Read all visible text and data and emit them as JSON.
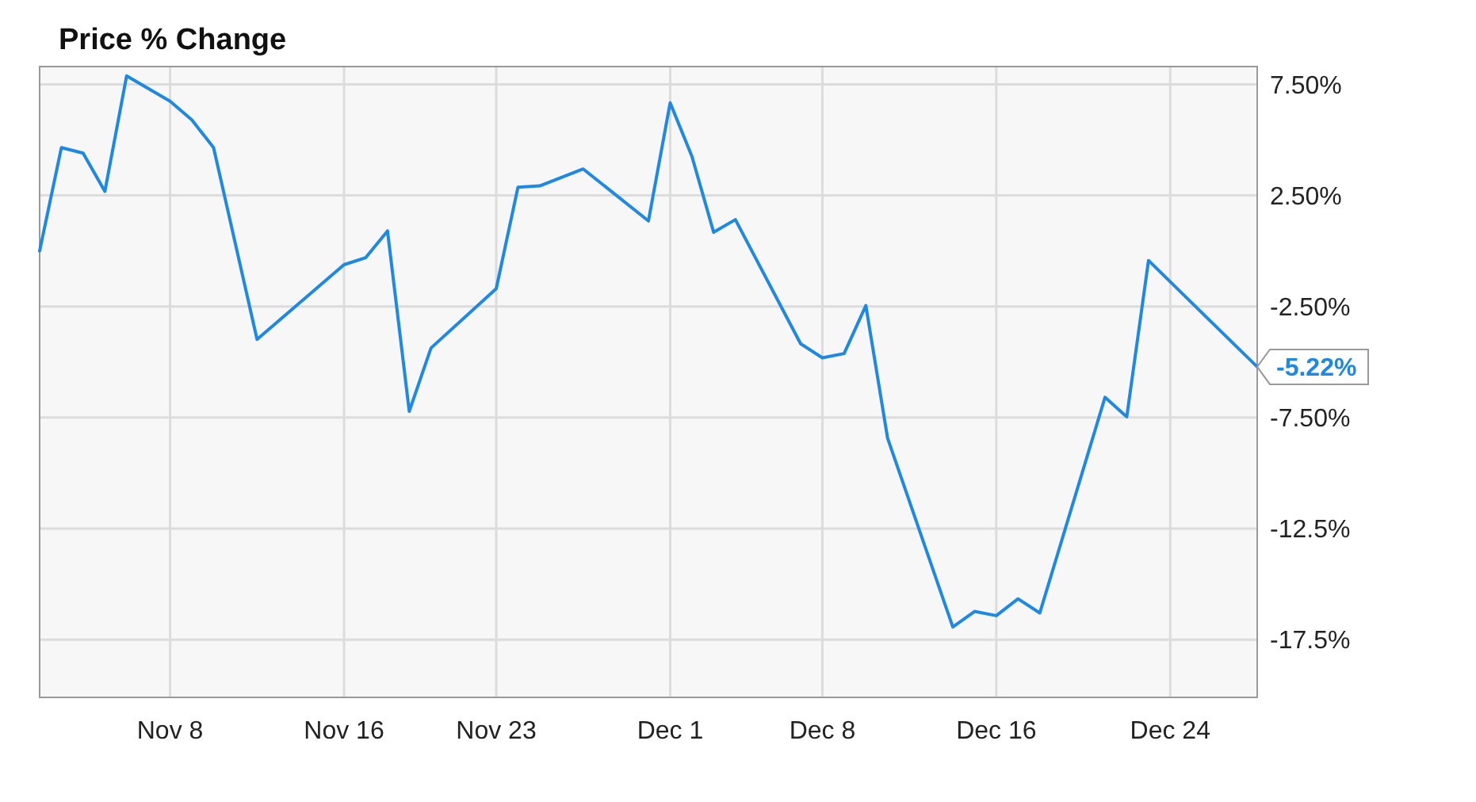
{
  "chart_data": {
    "type": "line",
    "title": "Price % Change",
    "x": [
      "--11-02",
      "--11-03",
      "--11-04",
      "--11-05",
      "--11-06",
      "--11-08",
      "--11-09",
      "--11-10",
      "--11-12",
      "--11-16",
      "--11-17",
      "--11-18",
      "--11-19",
      "--11-20",
      "--11-23",
      "--11-24",
      "--11-25",
      "--11-27",
      "--11-30",
      "--12-01",
      "--12-02",
      "--12-03",
      "--12-04",
      "--12-07",
      "--12-08",
      "--12-09",
      "--12-10",
      "--12-11",
      "--12-14",
      "--12-15",
      "--12-16",
      "--12-17",
      "--12-18",
      "--12-21",
      "--12-22",
      "--12-23",
      "--12-28"
    ],
    "series": [
      {
        "color": "#1e88e5",
        "values": [
          0.0,
          4.65,
          4.4,
          2.68,
          7.88,
          6.74,
          5.9,
          4.65,
          -3.98,
          -0.62,
          -0.3,
          0.9,
          -7.22,
          -4.37,
          -1.7,
          2.87,
          2.93,
          3.69,
          1.35,
          6.67,
          4.26,
          0.84,
          1.41,
          -4.18,
          -4.81,
          -4.62,
          -2.46,
          -8.43,
          -16.93,
          -16.23,
          -16.42,
          -15.66,
          -16.3,
          -6.59,
          -7.47,
          -0.43,
          -5.22
        ]
      }
    ],
    "xlim": [
      "--11-02",
      "--12-28"
    ],
    "xticks": [
      {
        "value": "--11-08",
        "label": "Nov 8"
      },
      {
        "value": "--11-16",
        "label": "Nov 16"
      },
      {
        "value": "--11-23",
        "label": "Nov 23"
      },
      {
        "value": "--12-01",
        "label": "Dec 1"
      },
      {
        "value": "--12-08",
        "label": "Dec 8"
      },
      {
        "value": "--12-16",
        "label": "Dec 16"
      },
      {
        "value": "--12-24",
        "label": "Dec 24"
      }
    ],
    "ylim": [
      -20.1,
      8.3
    ],
    "yticks": [
      {
        "value": 7.5,
        "label": "7.50%"
      },
      {
        "value": 2.5,
        "label": "2.50%"
      },
      {
        "value": -2.5,
        "label": "-2.50%"
      },
      {
        "value": -7.5,
        "label": "-7.50%"
      },
      {
        "value": -12.5,
        "label": "-12.5%"
      },
      {
        "value": -17.5,
        "label": "-17.5%"
      }
    ],
    "grid": true,
    "marker": "none",
    "line_style": "solid",
    "annotations": [
      {
        "text": "-5.22%",
        "x": "--12-28",
        "y": -5.22
      }
    ]
  }
}
